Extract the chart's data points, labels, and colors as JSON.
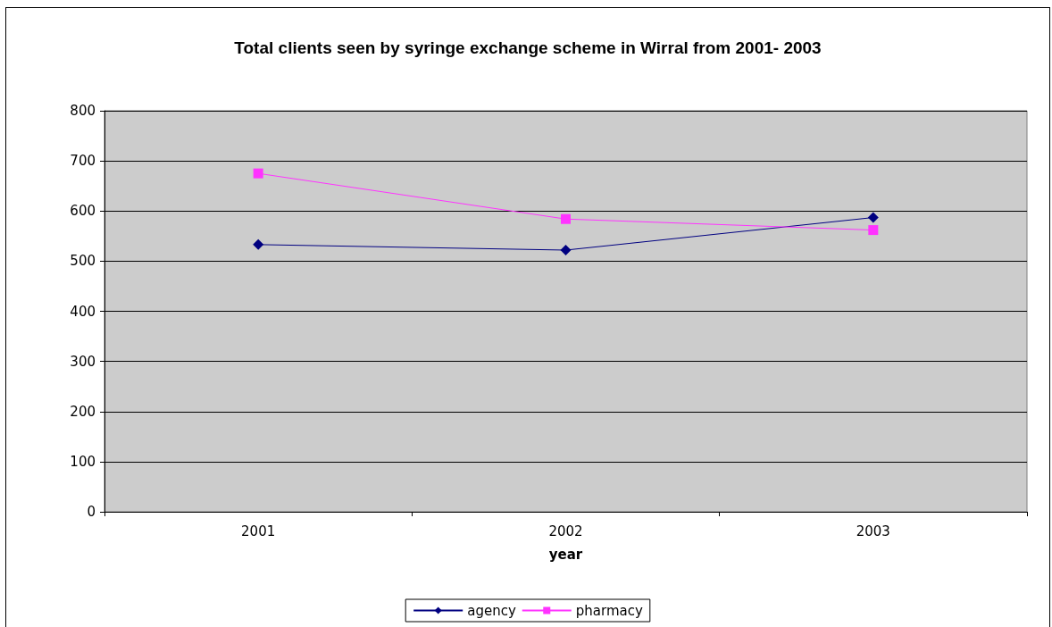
{
  "chart_data": {
    "type": "line",
    "title": "Total clients seen by syringe exchange scheme in Wirral from 2001- 2003",
    "xlabel": "year",
    "categories": [
      "2001",
      "2002",
      "2003"
    ],
    "series": [
      {
        "name": "agency",
        "color": "#000080",
        "values": [
          533,
          522,
          587
        ],
        "marker": "diamond"
      },
      {
        "name": "pharmacy",
        "color": "#ff33ff",
        "values": [
          675,
          584,
          562
        ],
        "marker": "square"
      }
    ],
    "ylim": [
      0,
      800
    ],
    "yticks": [
      0,
      100,
      200,
      300,
      400,
      500,
      600,
      700,
      800
    ],
    "grid": "y",
    "legend": "bottom",
    "line_style": "solid"
  }
}
